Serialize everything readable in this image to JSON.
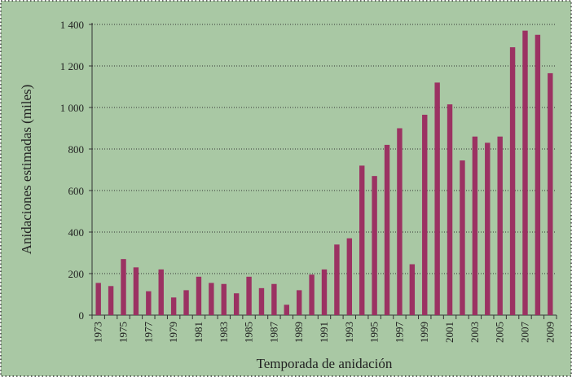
{
  "chart_data": {
    "type": "bar",
    "y_label": "Anidaciones estimadas (miles)",
    "x_label": "Temporada de anidación",
    "categories": [
      "1973",
      null,
      "1975",
      null,
      "1977",
      null,
      "1979",
      null,
      "1981",
      null,
      "1983",
      null,
      "1985",
      null,
      "1987",
      null,
      "1989",
      null,
      "1991",
      null,
      "1993",
      null,
      "1995",
      null,
      "1997",
      null,
      "1999",
      null,
      "2001",
      null,
      "2003",
      null,
      "2005",
      null,
      "2007",
      null,
      "2009"
    ],
    "values": [
      155,
      140,
      270,
      230,
      115,
      220,
      85,
      120,
      185,
      155,
      150,
      105,
      185,
      130,
      150,
      50,
      120,
      195,
      220,
      340,
      370,
      720,
      670,
      820,
      900,
      245,
      965,
      1120,
      1015,
      745,
      860,
      830,
      860,
      1290,
      1370,
      1350,
      1165
    ],
    "color": "#9b3262",
    "ylim": [
      0,
      1400
    ],
    "yticks": [
      0,
      200,
      400,
      600,
      800,
      {
        "value": 1000,
        "label": "1 000"
      },
      {
        "value": 1200,
        "label": "1 200"
      },
      {
        "value": 1400,
        "label": "1 400"
      }
    ],
    "grid": true
  }
}
